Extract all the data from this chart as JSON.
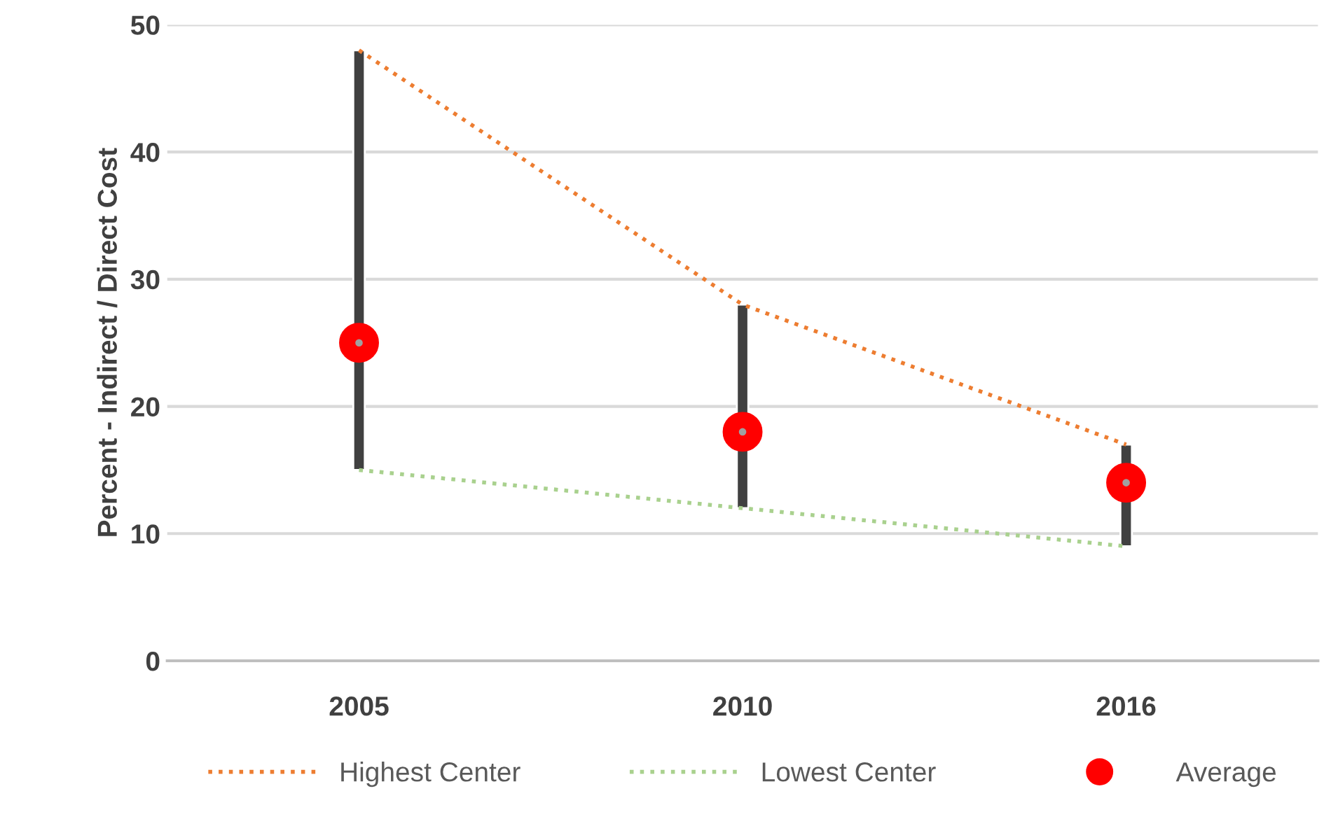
{
  "chart_data": {
    "type": "bar",
    "ylabel": "Percent - Indirect / Direct Cost",
    "categories": [
      "2005",
      "2010",
      "2016"
    ],
    "series": [
      {
        "color": "#404040",
        "base": [
          15,
          12,
          9
        ],
        "values": [
          33,
          16,
          8
        ]
      },
      {
        "type": "line",
        "name": "Highest Center",
        "color": "#ed7d31",
        "line_style": "dotted",
        "values": [
          48,
          28,
          17
        ]
      },
      {
        "type": "line",
        "name": "Lowest Center",
        "color": "#a9d18e",
        "line_style": "dotted",
        "values": [
          15,
          12,
          9
        ]
      },
      {
        "type": "scatter",
        "name": "Average",
        "color": "#ff0000",
        "marker": "circle",
        "values": [
          25,
          18,
          14
        ]
      }
    ],
    "ylim": [
      0,
      50
    ],
    "yticks": [
      0,
      10,
      20,
      30,
      40,
      50
    ],
    "grid": "y",
    "legend": "bottom"
  }
}
